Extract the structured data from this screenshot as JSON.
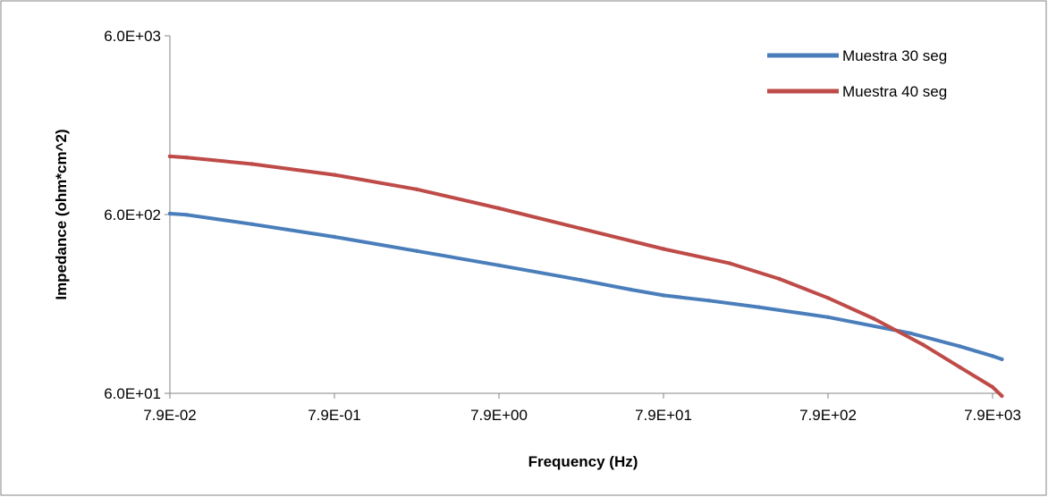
{
  "chart_data": {
    "type": "line",
    "xlabel": "Frequency (Hz)",
    "ylabel": "Impedance (ohm*cm^2)",
    "x_scale": "log",
    "y_scale": "log",
    "xlim": [
      0.079,
      7900
    ],
    "ylim": [
      60,
      6000
    ],
    "x_ticks": [
      0.079,
      0.79,
      7.9,
      79,
      790,
      7900
    ],
    "x_tick_labels": [
      "7.9E-02",
      "7.9E-01",
      "7.9E+00",
      "7.9E+01",
      "7.9E+02",
      "7.9E+03"
    ],
    "y_ticks": [
      60,
      600,
      6000
    ],
    "y_tick_labels": [
      "6.0E+01",
      "6.0E+02",
      "6.0E+03"
    ],
    "grid": false,
    "legend_position": "top-right",
    "series": [
      {
        "name": "Muestra 30 seg",
        "color": "#4a7ebb",
        "x": [
          0.079,
          0.1,
          0.25,
          0.79,
          2.5,
          7.9,
          25,
          50,
          79,
          150,
          300,
          790,
          2500,
          5000,
          7900,
          9000
        ],
        "y": [
          607,
          598,
          530,
          450,
          375,
          312,
          258,
          228,
          212,
          198,
          182,
          160,
          130,
          110,
          97,
          93
        ]
      },
      {
        "name": "Muestra 40 seg",
        "color": "#be4b48",
        "x": [
          0.079,
          0.1,
          0.25,
          0.79,
          2.5,
          7.9,
          25,
          79,
          200,
          400,
          790,
          1500,
          3000,
          5000,
          7900,
          9000
        ],
        "y": [
          1270,
          1250,
          1150,
          1000,
          830,
          650,
          500,
          385,
          320,
          262,
          205,
          157,
          112,
          84,
          65,
          58
        ]
      }
    ]
  }
}
